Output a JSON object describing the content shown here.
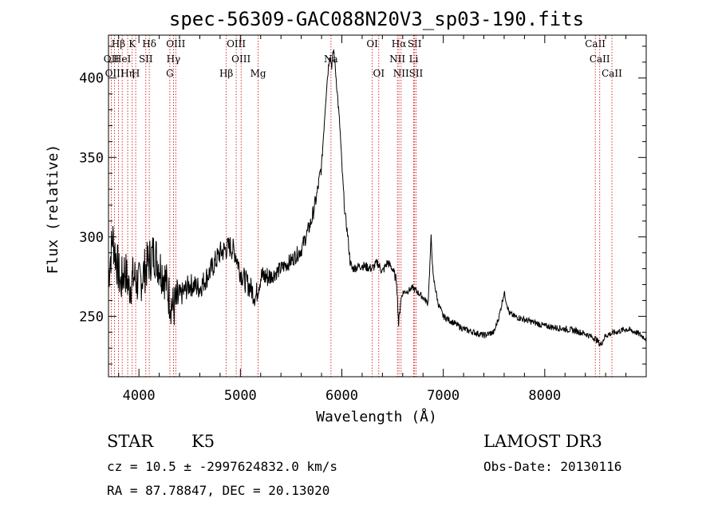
{
  "chart_data": {
    "type": "line",
    "title": "spec-56309-GAC088N20V3_sp03-190.fits",
    "xlabel": "Wavelength (Å)",
    "ylabel": "Flux (relative)",
    "xlim": [
      3700,
      9000
    ],
    "ylim": [
      212,
      427
    ],
    "xticks": [
      4000,
      5000,
      6000,
      7000,
      8000
    ],
    "yticks": [
      250,
      300,
      350,
      400
    ],
    "xtick_labels": [
      "4000",
      "5000",
      "6000",
      "7000",
      "8000"
    ],
    "ytick_labels": [
      "250",
      "300",
      "350",
      "400"
    ],
    "series": [
      {
        "name": "flux",
        "color": "#000000",
        "points": [
          [
            3700,
            275
          ],
          [
            3740,
            300
          ],
          [
            3780,
            285
          ],
          [
            3820,
            270
          ],
          [
            3860,
            280
          ],
          [
            3900,
            268
          ],
          [
            3950,
            275
          ],
          [
            4000,
            270
          ],
          [
            4050,
            278
          ],
          [
            4100,
            285
          ],
          [
            4150,
            290
          ],
          [
            4200,
            282
          ],
          [
            4250,
            276
          ],
          [
            4300,
            262
          ],
          [
            4340,
            255
          ],
          [
            4400,
            262
          ],
          [
            4500,
            270
          ],
          [
            4600,
            268
          ],
          [
            4700,
            278
          ],
          [
            4800,
            290
          ],
          [
            4900,
            294
          ],
          [
            4950,
            290
          ],
          [
            5000,
            278
          ],
          [
            5050,
            272
          ],
          [
            5100,
            268
          ],
          [
            5150,
            262
          ],
          [
            5200,
            275
          ],
          [
            5300,
            275
          ],
          [
            5400,
            280
          ],
          [
            5500,
            285
          ],
          [
            5600,
            292
          ],
          [
            5700,
            310
          ],
          [
            5750,
            325
          ],
          [
            5800,
            345
          ],
          [
            5850,
            395
          ],
          [
            5880,
            415
          ],
          [
            5900,
            408
          ],
          [
            5920,
            418
          ],
          [
            5950,
            395
          ],
          [
            5980,
            370
          ],
          [
            6000,
            345
          ],
          [
            6030,
            315
          ],
          [
            6060,
            300
          ],
          [
            6080,
            285
          ],
          [
            6100,
            280
          ],
          [
            6200,
            282
          ],
          [
            6300,
            280
          ],
          [
            6350,
            284
          ],
          [
            6400,
            278
          ],
          [
            6450,
            284
          ],
          [
            6500,
            280
          ],
          [
            6540,
            272
          ],
          [
            6560,
            245
          ],
          [
            6580,
            260
          ],
          [
            6600,
            265
          ],
          [
            6650,
            266
          ],
          [
            6700,
            268
          ],
          [
            6750,
            265
          ],
          [
            6800,
            262
          ],
          [
            6850,
            258
          ],
          [
            6880,
            300
          ],
          [
            6900,
            275
          ],
          [
            6950,
            258
          ],
          [
            7000,
            250
          ],
          [
            7100,
            246
          ],
          [
            7200,
            242
          ],
          [
            7300,
            240
          ],
          [
            7400,
            238
          ],
          [
            7500,
            240
          ],
          [
            7550,
            250
          ],
          [
            7600,
            265
          ],
          [
            7650,
            252
          ],
          [
            7700,
            250
          ],
          [
            7800,
            248
          ],
          [
            7900,
            246
          ],
          [
            8000,
            244
          ],
          [
            8100,
            243
          ],
          [
            8200,
            242
          ],
          [
            8300,
            241
          ],
          [
            8400,
            239
          ],
          [
            8500,
            236
          ],
          [
            8550,
            232
          ],
          [
            8600,
            238
          ],
          [
            8700,
            240
          ],
          [
            8800,
            242
          ],
          [
            8900,
            240
          ],
          [
            9000,
            236
          ]
        ]
      }
    ],
    "line_markers": [
      {
        "label": "Hβ",
        "wavelength": 3798,
        "row": 0
      },
      {
        "label": "K",
        "wavelength": 3934,
        "row": 0
      },
      {
        "label": "Hδ",
        "wavelength": 4102,
        "row": 0
      },
      {
        "label": "OIII",
        "wavelength": 4363,
        "row": 0
      },
      {
        "label": "OIII",
        "wavelength": 4959,
        "row": 0
      },
      {
        "label": "OI",
        "wavelength": 6300,
        "row": 0
      },
      {
        "label": "Hα",
        "wavelength": 6563,
        "row": 0
      },
      {
        "label": "SII",
        "wavelength": 6717,
        "row": 0
      },
      {
        "label": "CaII",
        "wavelength": 8498,
        "row": 0
      },
      {
        "label": "OII",
        "wavelength": 3727,
        "row": 1
      },
      {
        "label": "HeI",
        "wavelength": 3835,
        "row": 1
      },
      {
        "label": "SII",
        "wavelength": 4068,
        "row": 1
      },
      {
        "label": "Hγ",
        "wavelength": 4340,
        "row": 1
      },
      {
        "label": "OIII",
        "wavelength": 5007,
        "row": 1
      },
      {
        "label": "Na",
        "wavelength": 5893,
        "row": 1
      },
      {
        "label": "NII",
        "wavelength": 6548,
        "row": 1
      },
      {
        "label": "Li",
        "wavelength": 6708,
        "row": 1
      },
      {
        "label": "CaII",
        "wavelength": 8542,
        "row": 1
      },
      {
        "label": "OIII",
        "wavelength": 3760,
        "row": 2
      },
      {
        "label": "Hη",
        "wavelength": 3889,
        "row": 2
      },
      {
        "label": "H",
        "wavelength": 3968,
        "row": 2
      },
      {
        "label": "G",
        "wavelength": 4305,
        "row": 2
      },
      {
        "label": "Hβ",
        "wavelength": 4861,
        "row": 2
      },
      {
        "label": "Mg",
        "wavelength": 5175,
        "row": 2
      },
      {
        "label": "OI",
        "wavelength": 6364,
        "row": 2
      },
      {
        "label": "NII",
        "wavelength": 6584,
        "row": 2
      },
      {
        "label": "SII",
        "wavelength": 6731,
        "row": 2
      },
      {
        "label": "CaII",
        "wavelength": 8662,
        "row": 2
      }
    ],
    "marker_color": "#cc0000"
  },
  "info": {
    "object_class": "STAR",
    "subclass": "K5",
    "survey": "LAMOST DR3",
    "redshift": "cz = 10.5 ± -2997624832.0 km/s",
    "obs_date": "Obs-Date: 20130116",
    "coords": "RA =  87.78847, DEC =  20.13020"
  }
}
